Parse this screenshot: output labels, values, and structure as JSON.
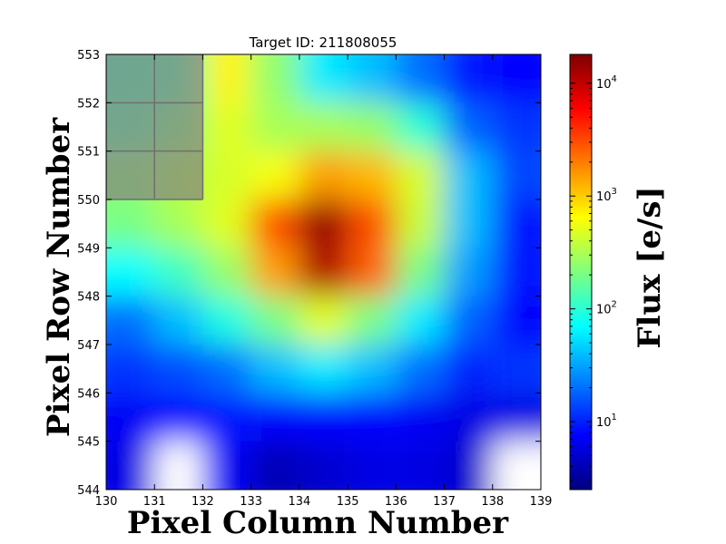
{
  "chart_data": {
    "type": "heatmap",
    "title": "Target ID: 211808055",
    "xlabel": "Pixel Column Number",
    "ylabel": "Pixel Row Number",
    "xlim": [
      130,
      139
    ],
    "ylim": [
      544,
      553
    ],
    "x_ticks": [
      "130",
      "131",
      "132",
      "133",
      "134",
      "135",
      "136",
      "137",
      "138",
      "139"
    ],
    "y_ticks": [
      "544",
      "545",
      "546",
      "547",
      "548",
      "549",
      "550",
      "551",
      "552",
      "553"
    ],
    "colorbar": {
      "label": "Flux [e/s]",
      "scale": "log",
      "range": [
        2.5,
        18000
      ],
      "colormap": "jet",
      "ticks": [
        {
          "value": 10,
          "base": "10",
          "exp": "1"
        },
        {
          "value": 100,
          "base": "10",
          "exp": "2"
        },
        {
          "value": 1000,
          "base": "10",
          "exp": "3"
        },
        {
          "value": 10000,
          "base": "10",
          "exp": "4"
        }
      ]
    },
    "grid_columns": [
      130,
      131,
      132,
      133,
      134,
      135,
      136,
      137,
      138
    ],
    "grid_rows_top_to_bottom": [
      552,
      551,
      550,
      549,
      548,
      547,
      546,
      545,
      544
    ],
    "flux_rows_top_to_bottom": [
      [
        130,
        150,
        700,
        250,
        60,
        40,
        20,
        9,
        8
      ],
      [
        150,
        220,
        500,
        300,
        300,
        260,
        100,
        18,
        12
      ],
      [
        250,
        350,
        450,
        600,
        1500,
        1200,
        450,
        40,
        14
      ],
      [
        200,
        300,
        500,
        3000,
        15000,
        3000,
        400,
        40,
        9
      ],
      [
        70,
        120,
        260,
        1500,
        12000,
        2500,
        200,
        30,
        9
      ],
      [
        20,
        40,
        90,
        200,
        500,
        200,
        60,
        18,
        8
      ],
      [
        12,
        15,
        20,
        40,
        60,
        40,
        20,
        10,
        12
      ],
      [
        7,
        8,
        9,
        8,
        8,
        8,
        7,
        6,
        6
      ],
      [
        6,
        null,
        7,
        4,
        5,
        6,
        6,
        5,
        null
      ]
    ],
    "mask_region": {
      "x": [
        130,
        132
      ],
      "y": [
        550,
        553
      ],
      "color": "#808080",
      "opacity": 0.7
    }
  }
}
